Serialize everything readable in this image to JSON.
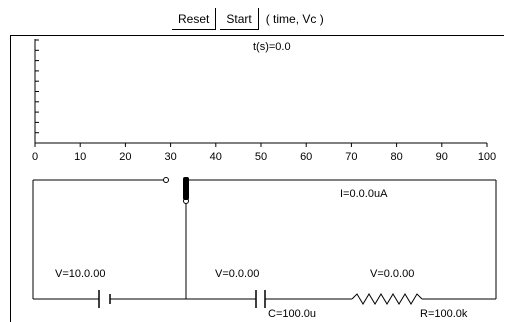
{
  "toolbar": {
    "reset_label": "Reset",
    "start_label": "Start",
    "mode_label": "( time, Vc )"
  },
  "plot": {
    "time_readout": "t(s)=0.0",
    "x_ticks": [
      "0",
      "10",
      "20",
      "30",
      "40",
      "50",
      "60",
      "70",
      "80",
      "90",
      "100"
    ]
  },
  "circuit": {
    "current_readout": "I=0.0.0uA",
    "battery_voltage": "V=10.0.00",
    "capacitor_voltage": "V=0.0.00",
    "resistor_voltage": "V=0.0.00",
    "capacitance_label": "C=100.0u",
    "resistance_label": "R=100.0k"
  }
}
